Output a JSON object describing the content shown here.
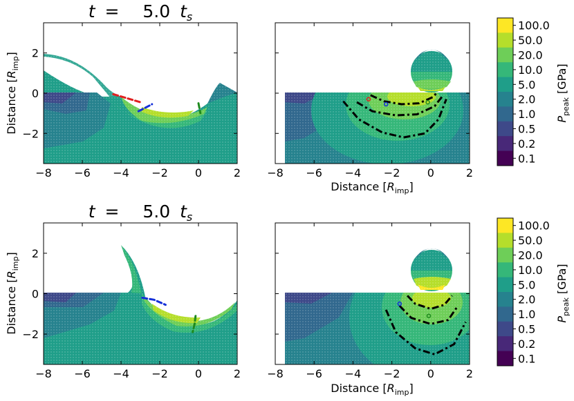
{
  "chart_data": [
    {
      "type": "contour",
      "panel": "top-left",
      "title": "t =    5.0 t_s",
      "title_parts": {
        "lhs": "t",
        "eq": "=",
        "value": "5.0",
        "unit": "t",
        "unit_sub": "s"
      },
      "xlabel": "",
      "ylabel": "Distance [R_imp]",
      "ylabel_parts": {
        "text": "Distance [",
        "sub": "imp",
        "main": "R",
        "close": "]"
      },
      "xlim": [
        -8,
        2
      ],
      "ylim": [
        -3.5,
        3.5
      ],
      "xticks": [
        -8,
        -6,
        -4,
        -2,
        0,
        2
      ],
      "yticks": [
        -2,
        0,
        2
      ],
      "xtick_labels": [
        "−8",
        "−6",
        "−4",
        "−2",
        "0",
        "2"
      ],
      "ytick_labels": [
        "−2",
        "0",
        "2"
      ],
      "markers": [
        {
          "color": "#e02020",
          "style": "dashed",
          "points": [
            [
              -4.4,
              -0.05
            ],
            [
              -3.7,
              -0.25
            ],
            [
              -3.0,
              -0.45
            ]
          ]
        },
        {
          "color": "#1530d8",
          "style": "dashed",
          "points": [
            [
              -3.1,
              -0.9
            ],
            [
              -2.8,
              -0.75
            ],
            [
              -2.4,
              -0.55
            ]
          ]
        },
        {
          "color": "#1e8a1e",
          "style": "dashed",
          "points": [
            [
              0.0,
              -0.5
            ],
            [
              0.05,
              -0.75
            ],
            [
              0.1,
              -1.0
            ]
          ]
        }
      ]
    },
    {
      "type": "contour",
      "panel": "top-right",
      "xlabel": "Distance [R_imp]",
      "xlabel_parts": {
        "text": "Distance [",
        "main": "R",
        "sub": "imp",
        "close": "]"
      },
      "xlim": [
        -8,
        2
      ],
      "ylim": [
        -3.5,
        3.5
      ],
      "xticks": [
        -8,
        -6,
        -4,
        -2,
        0,
        2
      ],
      "xtick_labels": [
        "−8",
        "−6",
        "−4",
        "−2",
        "0",
        "2"
      ],
      "contours": [
        {
          "style": "dashdot",
          "points": [
            [
              -3.1,
              -0.1
            ],
            [
              -2.4,
              -0.4
            ],
            [
              -1.5,
              -0.55
            ],
            [
              -0.6,
              -0.5
            ],
            [
              0.1,
              -0.2
            ],
            [
              0.3,
              0.0
            ]
          ]
        },
        {
          "style": "dashdot",
          "points": [
            [
              -3.8,
              -0.45
            ],
            [
              -3.0,
              -0.9
            ],
            [
              -1.8,
              -1.1
            ],
            [
              -0.7,
              -1.05
            ],
            [
              0.2,
              -0.65
            ],
            [
              0.6,
              -0.15
            ]
          ]
        },
        {
          "style": "dashdot",
          "points": [
            [
              -4.5,
              -0.4
            ],
            [
              -3.7,
              -1.3
            ],
            [
              -2.5,
              -1.95
            ],
            [
              -1.4,
              -2.2
            ],
            [
              -0.3,
              -2.0
            ],
            [
              0.4,
              -1.3
            ],
            [
              0.8,
              -0.3
            ]
          ]
        }
      ],
      "points": [
        {
          "color": "#e02020",
          "x": -3.2,
          "y": -0.3
        },
        {
          "color": "#1530d8",
          "x": -2.3,
          "y": -0.55
        },
        {
          "color": "#1e8a1e",
          "x": -0.15,
          "y": -0.45
        }
      ]
    },
    {
      "type": "contour",
      "panel": "bottom-left",
      "title": "t =    5.0 t_s",
      "title_parts": {
        "lhs": "t",
        "eq": "=",
        "value": "5.0",
        "unit": "t",
        "unit_sub": "s"
      },
      "ylabel": "Distance [R_imp]",
      "ylabel_parts": {
        "text": "Distance [",
        "sub": "imp",
        "main": "R",
        "close": "]"
      },
      "xlim": [
        -8,
        2
      ],
      "ylim": [
        -3.5,
        3.5
      ],
      "xticks": [
        -8,
        -6,
        -4,
        -2,
        0,
        2
      ],
      "yticks": [
        -2,
        0,
        2
      ],
      "xtick_labels": [
        "−8",
        "−6",
        "−4",
        "−2",
        "0",
        "2"
      ],
      "ytick_labels": [
        "−2",
        "0",
        "2"
      ],
      "markers": [
        {
          "color": "#1530d8",
          "style": "dashed",
          "points": [
            [
              -2.9,
              -0.2
            ],
            [
              -2.3,
              -0.3
            ],
            [
              -1.7,
              -0.55
            ]
          ]
        },
        {
          "color": "#1e8a1e",
          "style": "dashed",
          "points": [
            [
              -0.15,
              -1.1
            ],
            [
              -0.2,
              -1.5
            ],
            [
              -0.3,
              -1.9
            ]
          ]
        }
      ]
    },
    {
      "type": "contour",
      "panel": "bottom-right",
      "xlabel": "Distance [R_imp]",
      "xlabel_parts": {
        "text": "Distance [",
        "main": "R",
        "sub": "imp",
        "close": "]"
      },
      "xlim": [
        -8,
        2
      ],
      "ylim": [
        -3.5,
        3.5
      ],
      "xticks": [
        -8,
        -6,
        -4,
        -2,
        0,
        2
      ],
      "xtick_labels": [
        "−8",
        "−6",
        "−4",
        "−2",
        "0",
        "2"
      ],
      "contours": [
        {
          "style": "dashdot",
          "points": [
            [
              -1.2,
              -0.1
            ],
            [
              -0.8,
              -0.5
            ],
            [
              0.0,
              -0.75
            ],
            [
              0.7,
              -0.55
            ],
            [
              1.1,
              -0.1
            ]
          ]
        },
        {
          "style": "dashdot",
          "points": [
            [
              -1.6,
              -0.6
            ],
            [
              -1.0,
              -1.2
            ],
            [
              0.0,
              -1.5
            ],
            [
              0.9,
              -1.3
            ],
            [
              1.4,
              -0.6
            ]
          ]
        },
        {
          "style": "dashdot",
          "points": [
            [
              -2.3,
              -0.8
            ],
            [
              -1.8,
              -1.9
            ],
            [
              -0.8,
              -2.7
            ],
            [
              0.2,
              -3.0
            ],
            [
              1.2,
              -2.5
            ],
            [
              1.8,
              -1.4
            ]
          ]
        }
      ],
      "points": [
        {
          "color": "#1530d8",
          "x": -1.6,
          "y": -0.5
        },
        {
          "color": "#1e8a1e",
          "x": -0.1,
          "y": -1.1
        }
      ]
    }
  ],
  "colorbar": {
    "label_parts": {
      "main": "P",
      "sub": "peak",
      "unit": " [GPa]"
    },
    "levels": [
      "100.0",
      "50.0",
      "20.0",
      "10.0",
      "5.0",
      "2.0",
      "1.0",
      "0.5",
      "0.2",
      "0.1"
    ],
    "colors": [
      "#fde725",
      "#b5de2b",
      "#6ece58",
      "#35b779",
      "#1f9e89",
      "#26828e",
      "#31688e",
      "#3e4989",
      "#482878",
      "#440154"
    ]
  },
  "colors": {
    "deep": "#440154",
    "purple": "#482878",
    "indigo": "#3e4989",
    "blue": "#31688e",
    "teal": "#26828e",
    "teal2": "#1f9e89",
    "green": "#35b779",
    "lime": "#6ece58",
    "lime2": "#b5de2b",
    "yellow": "#fde725"
  }
}
